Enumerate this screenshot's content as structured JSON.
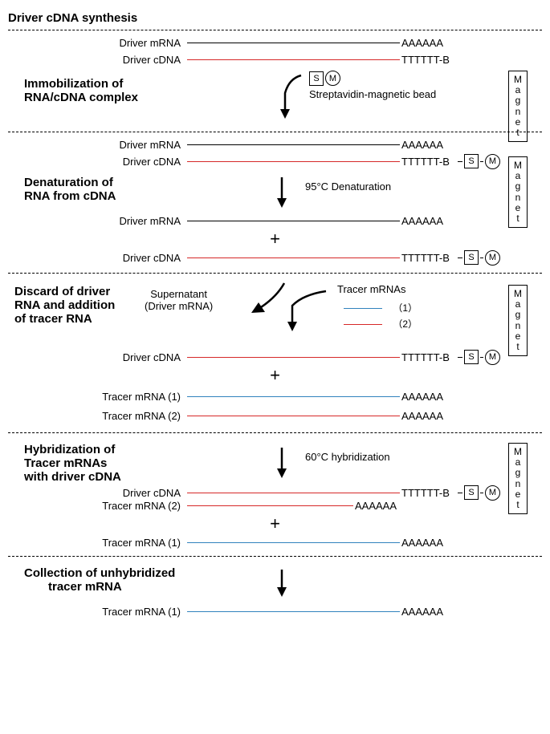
{
  "colors": {
    "black": "#000000",
    "red": "#d62828",
    "blue": "#3182bd"
  },
  "tails": {
    "polyA": "AAAAAA",
    "polyTB": "TTTTTT-B"
  },
  "labels": {
    "driver_mrna": "Driver mRNA",
    "driver_cdna": "Driver cDNA",
    "tracer_mrna_1": "Tracer mRNA (1)",
    "tracer_mrna_2": "Tracer mRNA (2)",
    "tracer_mrnas": "Tracer mRNAs",
    "supernatant": "Supernatant",
    "supernatant_sub": "(Driver mRNA)",
    "legend1": "（1）",
    "legend2": "（2）",
    "S": "S",
    "M": "M",
    "magnet": "Magnet"
  },
  "sections": {
    "s1_title": "Driver cDNA synthesis",
    "s2_title": "Immobilization of",
    "s2_title_b": "RNA/cDNA complex",
    "s2_arrow": "Streptavidin-magnetic bead",
    "s3_title": "Denaturation of",
    "s3_title_b": "RNA from cDNA",
    "s3_arrow": "95°C Denaturation",
    "s4_title": "Discard of driver",
    "s4_title_b": "RNA and addition",
    "s4_title_c": "of tracer RNA",
    "s5_title": "Hybridization of",
    "s5_title_b": "Tracer mRNAs",
    "s5_title_c": "with driver cDNA",
    "s5_arrow": "60°C hybridization",
    "s6_title": "Collection of unhybridized",
    "s6_title_b": "tracer mRNA"
  }
}
